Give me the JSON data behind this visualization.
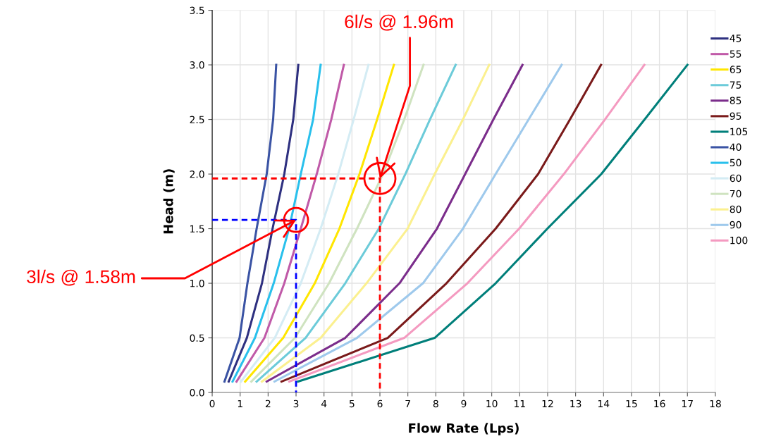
{
  "chart_data": {
    "type": "line",
    "xlabel": "Flow Rate (Lps)",
    "ylabel": "Head (m)",
    "xlim": [
      0,
      18
    ],
    "xticks": [
      0,
      1,
      2,
      3,
      4,
      5,
      6,
      7,
      8,
      9,
      10,
      11,
      12,
      13,
      14,
      15,
      16,
      17,
      18
    ],
    "ylim": [
      0,
      3.5
    ],
    "yticks": [
      {
        "value": 0,
        "label": "0.0"
      },
      0.5,
      {
        "value": 1,
        "label": "1.0"
      },
      1.5,
      {
        "value": 2,
        "label": "2.0"
      },
      2.5,
      {
        "value": 3,
        "label": "3.0"
      },
      3.5
    ],
    "grid": true,
    "legend": "right",
    "marker": "none",
    "line_style": "solid",
    "series": [
      {
        "name": "45",
        "color": "#2e3080",
        "x": [
          0.59,
          1.24,
          1.78,
          2.16,
          2.58,
          2.9,
          3.08
        ],
        "values": [
          0.1,
          0.5,
          1.0,
          1.5,
          2.0,
          2.5,
          3.0
        ]
      },
      {
        "name": "55",
        "color": "#c05aa8",
        "x": [
          0.87,
          1.87,
          2.58,
          3.17,
          3.74,
          4.26,
          4.71
        ],
        "values": [
          0.1,
          0.5,
          1.0,
          1.5,
          2.0,
          2.5,
          3.0
        ]
      },
      {
        "name": "65",
        "color": "#ffe600",
        "x": [
          1.18,
          2.54,
          3.67,
          4.55,
          5.27,
          5.9,
          6.5
        ],
        "values": [
          0.1,
          0.5,
          1.0,
          1.5,
          2.0,
          2.5,
          3.0
        ]
      },
      {
        "name": "75",
        "color": "#6ccbd9",
        "x": [
          1.59,
          3.34,
          4.76,
          5.96,
          6.91,
          7.79,
          8.71
        ],
        "values": [
          0.1,
          0.5,
          1.0,
          1.5,
          2.0,
          2.5,
          3.0
        ]
      },
      {
        "name": "85",
        "color": "#7b2d8b",
        "x": [
          1.95,
          4.76,
          6.7,
          8.04,
          9.05,
          10.06,
          11.1
        ],
        "values": [
          0.1,
          0.5,
          1.0,
          1.5,
          2.0,
          2.5,
          3.0
        ]
      },
      {
        "name": "95",
        "color": "#7a1a1a",
        "x": [
          2.48,
          6.28,
          8.38,
          10.14,
          11.66,
          12.8,
          13.91
        ],
        "values": [
          0.1,
          0.5,
          1.0,
          1.5,
          2.0,
          2.5,
          3.0
        ]
      },
      {
        "name": "105",
        "color": "#007f7a",
        "x": [
          3.07,
          7.96,
          10.14,
          11.99,
          13.92,
          15.47,
          17.0
        ],
        "values": [
          0.1,
          0.5,
          1.0,
          1.5,
          2.0,
          2.5,
          3.0
        ]
      },
      {
        "name": "40",
        "color": "#3a53a4",
        "x": [
          0.44,
          0.98,
          1.26,
          1.59,
          1.95,
          2.18,
          2.29
        ],
        "values": [
          0.1,
          0.5,
          1.0,
          1.5,
          2.0,
          2.5,
          3.0
        ]
      },
      {
        "name": "50",
        "color": "#29c0ec",
        "x": [
          0.73,
          1.53,
          2.2,
          2.75,
          3.17,
          3.61,
          3.88
        ],
        "values": [
          0.1,
          0.5,
          1.0,
          1.5,
          2.0,
          2.5,
          3.0
        ]
      },
      {
        "name": "60",
        "color": "#d4ecf4",
        "x": [
          1.03,
          2.24,
          3.17,
          3.88,
          4.51,
          5.06,
          5.59
        ],
        "values": [
          0.1,
          0.5,
          1.0,
          1.5,
          2.0,
          2.5,
          3.0
        ]
      },
      {
        "name": "70",
        "color": "#cfe3c0",
        "x": [
          1.4,
          2.96,
          4.18,
          5.18,
          6.11,
          6.87,
          7.56
        ],
        "values": [
          0.1,
          0.5,
          1.0,
          1.5,
          2.0,
          2.5,
          3.0
        ]
      },
      {
        "name": "80",
        "color": "#fbf08f",
        "x": [
          1.78,
          3.88,
          5.52,
          6.99,
          7.96,
          8.97,
          9.91
        ],
        "values": [
          0.1,
          0.5,
          1.0,
          1.5,
          2.0,
          2.5,
          3.0
        ]
      },
      {
        "name": "90",
        "color": "#9ec9ec",
        "x": [
          2.23,
          5.18,
          7.54,
          8.97,
          10.14,
          11.32,
          12.5
        ],
        "values": [
          0.1,
          0.5,
          1.0,
          1.5,
          2.0,
          2.5,
          3.0
        ]
      },
      {
        "name": "100",
        "color": "#f49ac0",
        "x": [
          2.76,
          6.87,
          9.13,
          10.98,
          12.58,
          14.05,
          15.46
        ],
        "values": [
          0.1,
          0.5,
          1.0,
          1.5,
          2.0,
          2.5,
          3.0
        ]
      },
      {
        "color": "#ff0000",
        "line_style": "dashed",
        "x": [
          0,
          6,
          6
        ],
        "values": [
          1.96,
          1.96,
          0
        ]
      },
      {
        "color": "#0000ff",
        "line_style": "dashed",
        "x": [
          0,
          3,
          3
        ],
        "values": [
          1.58,
          1.58,
          0
        ]
      }
    ],
    "annotations": [
      {
        "text": "6l/s @ 1.96m",
        "x": 6,
        "y": 1.96
      },
      {
        "text": "3l/s @ 1.58m",
        "x": 3,
        "y": 1.58
      }
    ]
  }
}
